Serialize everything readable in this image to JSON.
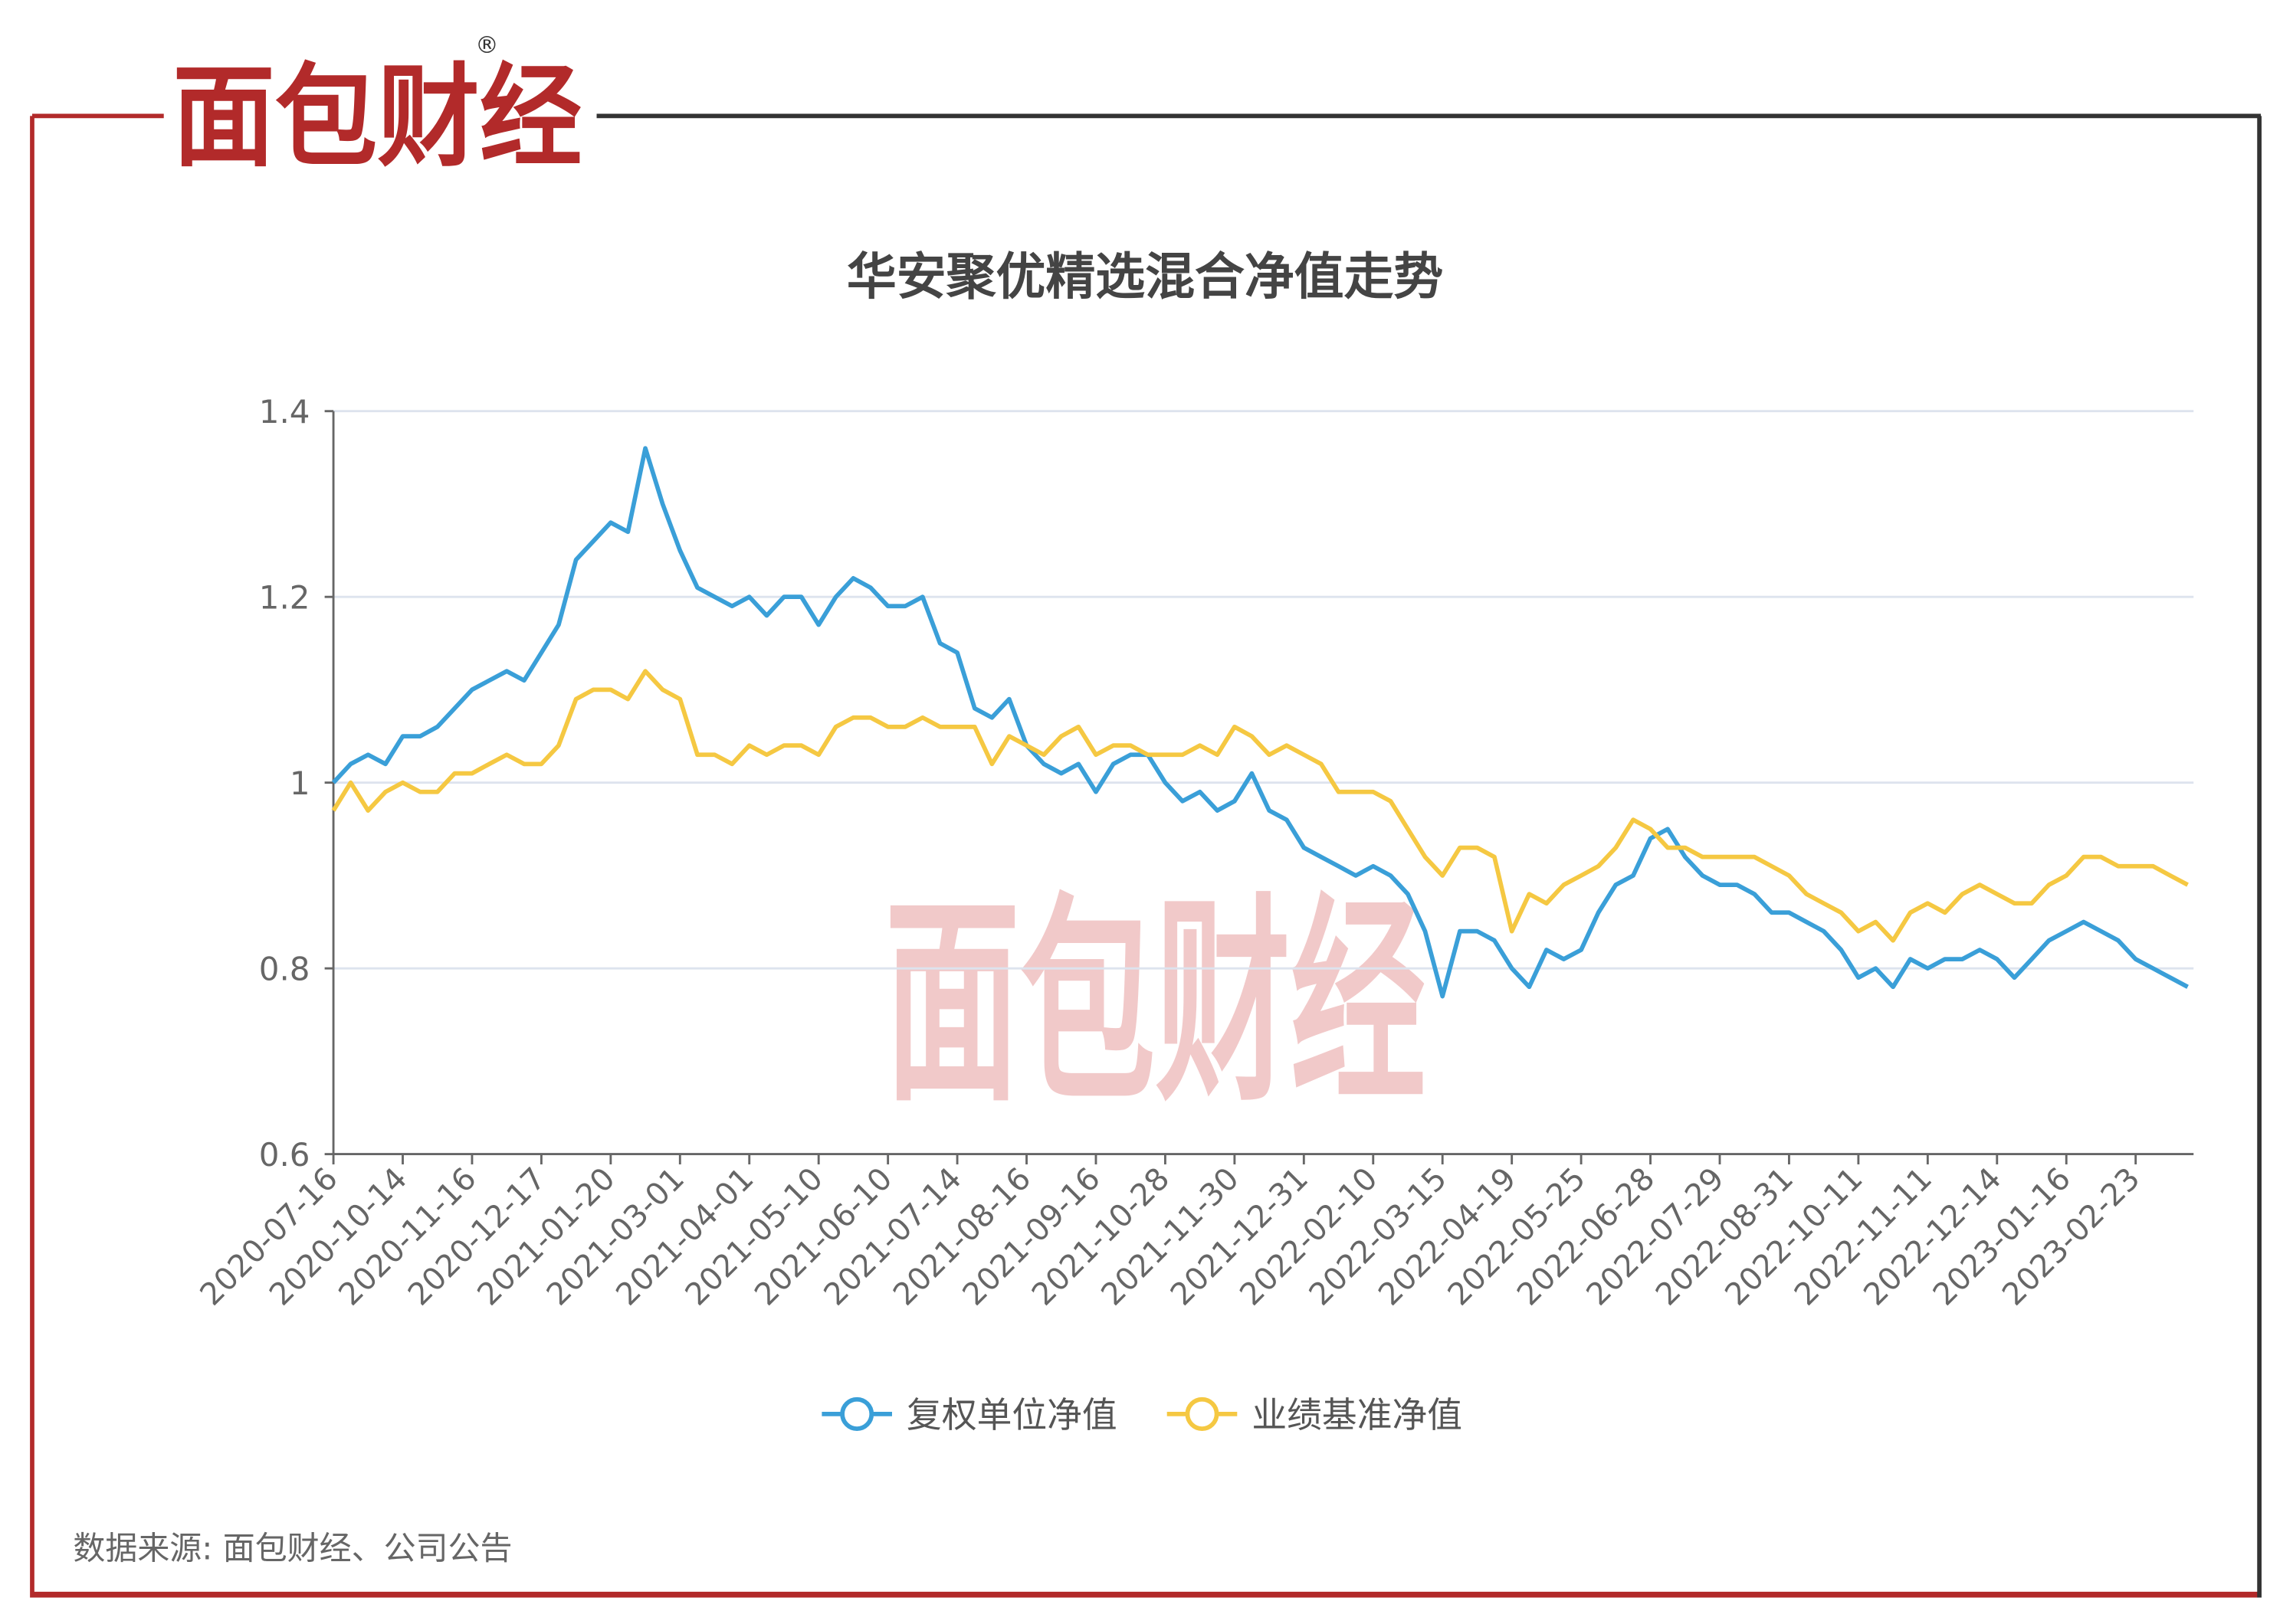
{
  "header": {
    "logo": "面包财经",
    "registered": "®"
  },
  "source": "数据来源: 面包财经、公司公告",
  "chart_data": {
    "type": "line",
    "title": "华安聚优精选混合净值走势",
    "categories": [
      "2020-07-16",
      null,
      null,
      null,
      "2020-10-14",
      null,
      null,
      null,
      "2020-11-16",
      null,
      null,
      null,
      "2020-12-17",
      null,
      null,
      null,
      "2021-01-20",
      null,
      null,
      null,
      "2021-03-01",
      null,
      null,
      null,
      "2021-04-01",
      null,
      null,
      null,
      "2021-05-10",
      null,
      null,
      null,
      "2021-06-10",
      null,
      null,
      null,
      "2021-07-14",
      null,
      null,
      null,
      "2021-08-16",
      null,
      null,
      null,
      "2021-09-16",
      null,
      null,
      null,
      "2021-10-28",
      null,
      null,
      null,
      "2021-11-30",
      null,
      null,
      null,
      "2021-12-31",
      null,
      null,
      null,
      "2022-02-10",
      null,
      null,
      null,
      "2022-03-15",
      null,
      null,
      null,
      "2022-04-19",
      null,
      null,
      null,
      "2022-05-25",
      null,
      null,
      null,
      "2022-06-28",
      null,
      null,
      null,
      "2022-07-29",
      null,
      null,
      null,
      "2022-08-31",
      null,
      null,
      null,
      "2022-10-11",
      null,
      null,
      null,
      "2022-11-11",
      null,
      null,
      null,
      "2022-12-14",
      null,
      null,
      null,
      "2023-01-16",
      null,
      null,
      null,
      "2023-02-23",
      null,
      null,
      null
    ],
    "series": [
      {
        "name": "复权单位净值",
        "color": "#3a9fd8",
        "values": [
          1.0,
          1.02,
          1.03,
          1.02,
          1.05,
          1.05,
          1.06,
          1.08,
          1.1,
          1.11,
          1.12,
          1.11,
          1.14,
          1.17,
          1.24,
          1.26,
          1.28,
          1.27,
          1.36,
          1.3,
          1.25,
          1.21,
          1.2,
          1.19,
          1.2,
          1.18,
          1.2,
          1.2,
          1.17,
          1.2,
          1.22,
          1.21,
          1.19,
          1.19,
          1.2,
          1.15,
          1.14,
          1.08,
          1.07,
          1.09,
          1.04,
          1.02,
          1.01,
          1.02,
          0.99,
          1.02,
          1.03,
          1.03,
          1.0,
          0.98,
          0.99,
          0.97,
          0.98,
          1.01,
          0.97,
          0.96,
          0.93,
          0.92,
          0.91,
          0.9,
          0.91,
          0.9,
          0.88,
          0.84,
          0.77,
          0.84,
          0.84,
          0.83,
          0.8,
          0.78,
          0.82,
          0.81,
          0.82,
          0.86,
          0.89,
          0.9,
          0.94,
          0.95,
          0.92,
          0.9,
          0.89,
          0.89,
          0.88,
          0.86,
          0.86,
          0.85,
          0.84,
          0.82,
          0.79,
          0.8,
          0.78,
          0.81,
          0.8,
          0.81,
          0.81,
          0.82,
          0.81,
          0.79,
          0.81,
          0.83,
          0.84,
          0.85,
          0.84,
          0.83,
          0.81,
          0.8,
          0.79,
          0.78
        ]
      },
      {
        "name": "业绩基准净值",
        "color": "#f5c842",
        "values": [
          0.97,
          1.0,
          0.97,
          0.99,
          1.0,
          0.99,
          0.99,
          1.01,
          1.01,
          1.02,
          1.03,
          1.02,
          1.02,
          1.04,
          1.09,
          1.1,
          1.1,
          1.09,
          1.12,
          1.1,
          1.09,
          1.03,
          1.03,
          1.02,
          1.04,
          1.03,
          1.04,
          1.04,
          1.03,
          1.06,
          1.07,
          1.07,
          1.06,
          1.06,
          1.07,
          1.06,
          1.06,
          1.06,
          1.02,
          1.05,
          1.04,
          1.03,
          1.05,
          1.06,
          1.03,
          1.04,
          1.04,
          1.03,
          1.03,
          1.03,
          1.04,
          1.03,
          1.06,
          1.05,
          1.03,
          1.04,
          1.03,
          1.02,
          0.99,
          0.99,
          0.99,
          0.98,
          0.95,
          0.92,
          0.9,
          0.93,
          0.93,
          0.92,
          0.84,
          0.88,
          0.87,
          0.89,
          0.9,
          0.91,
          0.93,
          0.96,
          0.95,
          0.93,
          0.93,
          0.92,
          0.92,
          0.92,
          0.92,
          0.91,
          0.9,
          0.88,
          0.87,
          0.86,
          0.84,
          0.85,
          0.83,
          0.86,
          0.87,
          0.86,
          0.88,
          0.89,
          0.88,
          0.87,
          0.87,
          0.89,
          0.9,
          0.92,
          0.92,
          0.91,
          0.91,
          0.91,
          0.9,
          0.89
        ]
      }
    ],
    "ylim": [
      0.6,
      1.4
    ],
    "yticks": [
      0.6,
      0.8,
      1,
      1.2,
      1.4
    ],
    "grid": true,
    "legend": "bottom"
  }
}
